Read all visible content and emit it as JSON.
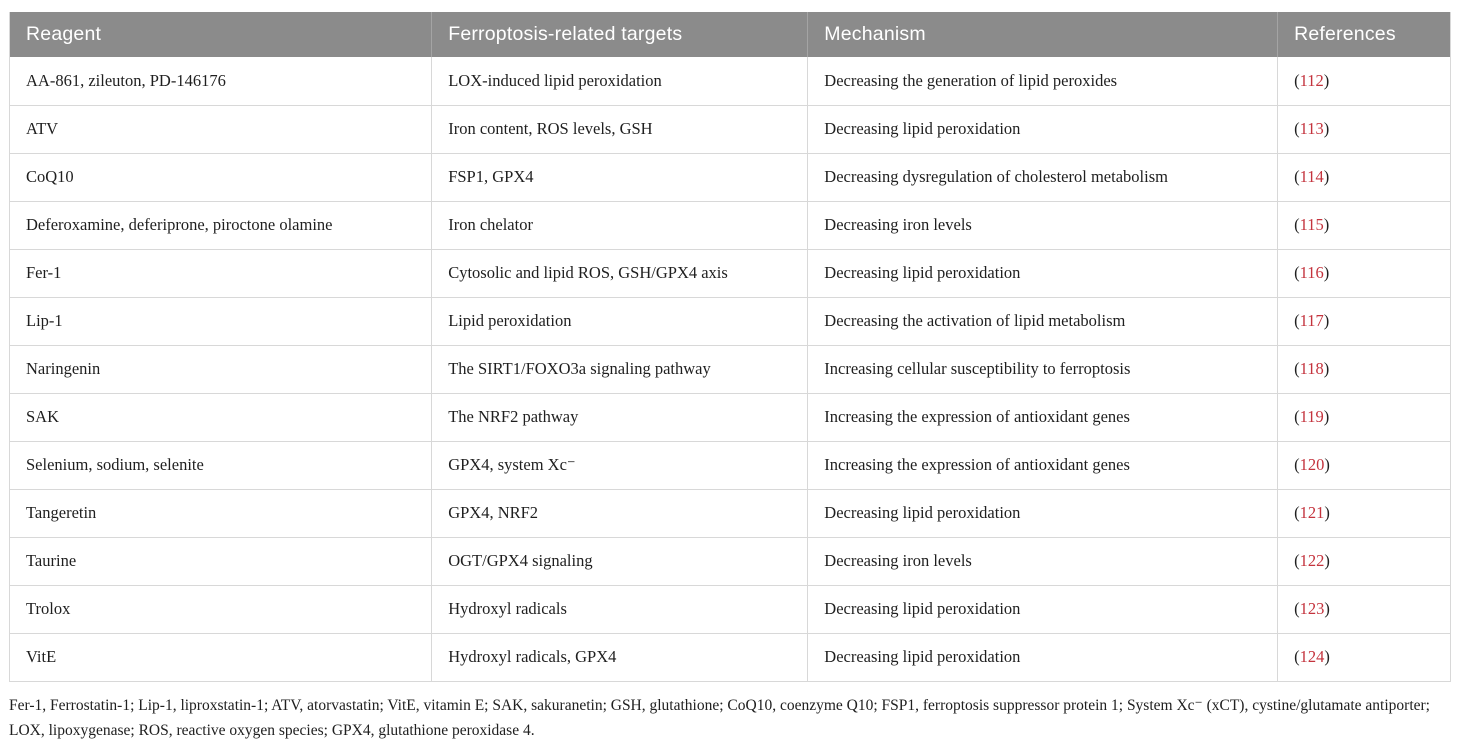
{
  "table": {
    "columns": [
      {
        "label": "Reagent"
      },
      {
        "label": "Ferroptosis-related targets"
      },
      {
        "label": "Mechanism"
      },
      {
        "label": "References"
      }
    ],
    "paren_open": "(",
    "paren_close": ")",
    "rows": [
      {
        "reagent": "AA-861, zileuton, PD-146176",
        "targets": "LOX-induced lipid peroxidation",
        "mechanism": "Decreasing the generation of lipid peroxides",
        "ref": "112"
      },
      {
        "reagent": "ATV",
        "targets": "Iron content, ROS levels, GSH",
        "mechanism": "Decreasing lipid peroxidation",
        "ref": "113"
      },
      {
        "reagent": "CoQ10",
        "targets": "FSP1, GPX4",
        "mechanism": "Decreasing dysregulation of cholesterol metabolism",
        "ref": "114"
      },
      {
        "reagent": "Deferoxamine, deferiprone, piroctone olamine",
        "targets": "Iron chelator",
        "mechanism": "Decreasing iron levels",
        "ref": "115"
      },
      {
        "reagent": "Fer-1",
        "targets": "Cytosolic and lipid ROS, GSH/GPX4 axis",
        "mechanism": "Decreasing lipid peroxidation",
        "ref": "116"
      },
      {
        "reagent": "Lip-1",
        "targets": "Lipid peroxidation",
        "mechanism": "Decreasing the activation of lipid metabolism",
        "ref": "117"
      },
      {
        "reagent": "Naringenin",
        "targets": "The SIRT1/FOXO3a signaling pathway",
        "mechanism": "Increasing cellular susceptibility to ferroptosis",
        "ref": "118"
      },
      {
        "reagent": "SAK",
        "targets": "The NRF2 pathway",
        "mechanism": "Increasing the expression of antioxidant genes",
        "ref": "119"
      },
      {
        "reagent": "Selenium, sodium, selenite",
        "targets": "GPX4, system Xc⁻",
        "mechanism": "Increasing the expression of antioxidant genes",
        "ref": "120"
      },
      {
        "reagent": "Tangeretin",
        "targets": "GPX4, NRF2",
        "mechanism": "Decreasing lipid peroxidation",
        "ref": "121"
      },
      {
        "reagent": "Taurine",
        "targets": "OGT/GPX4 signaling",
        "mechanism": "Decreasing iron levels",
        "ref": "122"
      },
      {
        "reagent": "Trolox",
        "targets": "Hydroxyl radicals",
        "mechanism": "Decreasing lipid peroxidation",
        "ref": "123"
      },
      {
        "reagent": "VitE",
        "targets": "Hydroxyl radicals, GPX4",
        "mechanism": "Decreasing lipid peroxidation",
        "ref": "124"
      }
    ]
  },
  "footnote": "Fer-1, Ferrostatin-1; Lip-1, liproxstatin-1; ATV, atorvastatin; VitE, vitamin E; SAK, sakuranetin; GSH, glutathione; CoQ10, coenzyme Q10; FSP1, ferroptosis suppressor protein 1; System Xc⁻ (xCT), cystine/glutamate antiporter; LOX, lipoxygenase; ROS, reactive oxygen species; GPX4, glutathione peroxidase 4.",
  "colors": {
    "header_bg": "#8b8b8b",
    "header_text": "#ffffff",
    "reference_red": "#c4333d",
    "grid_line": "#d8d8d8",
    "body_text": "#1f1f1f"
  }
}
